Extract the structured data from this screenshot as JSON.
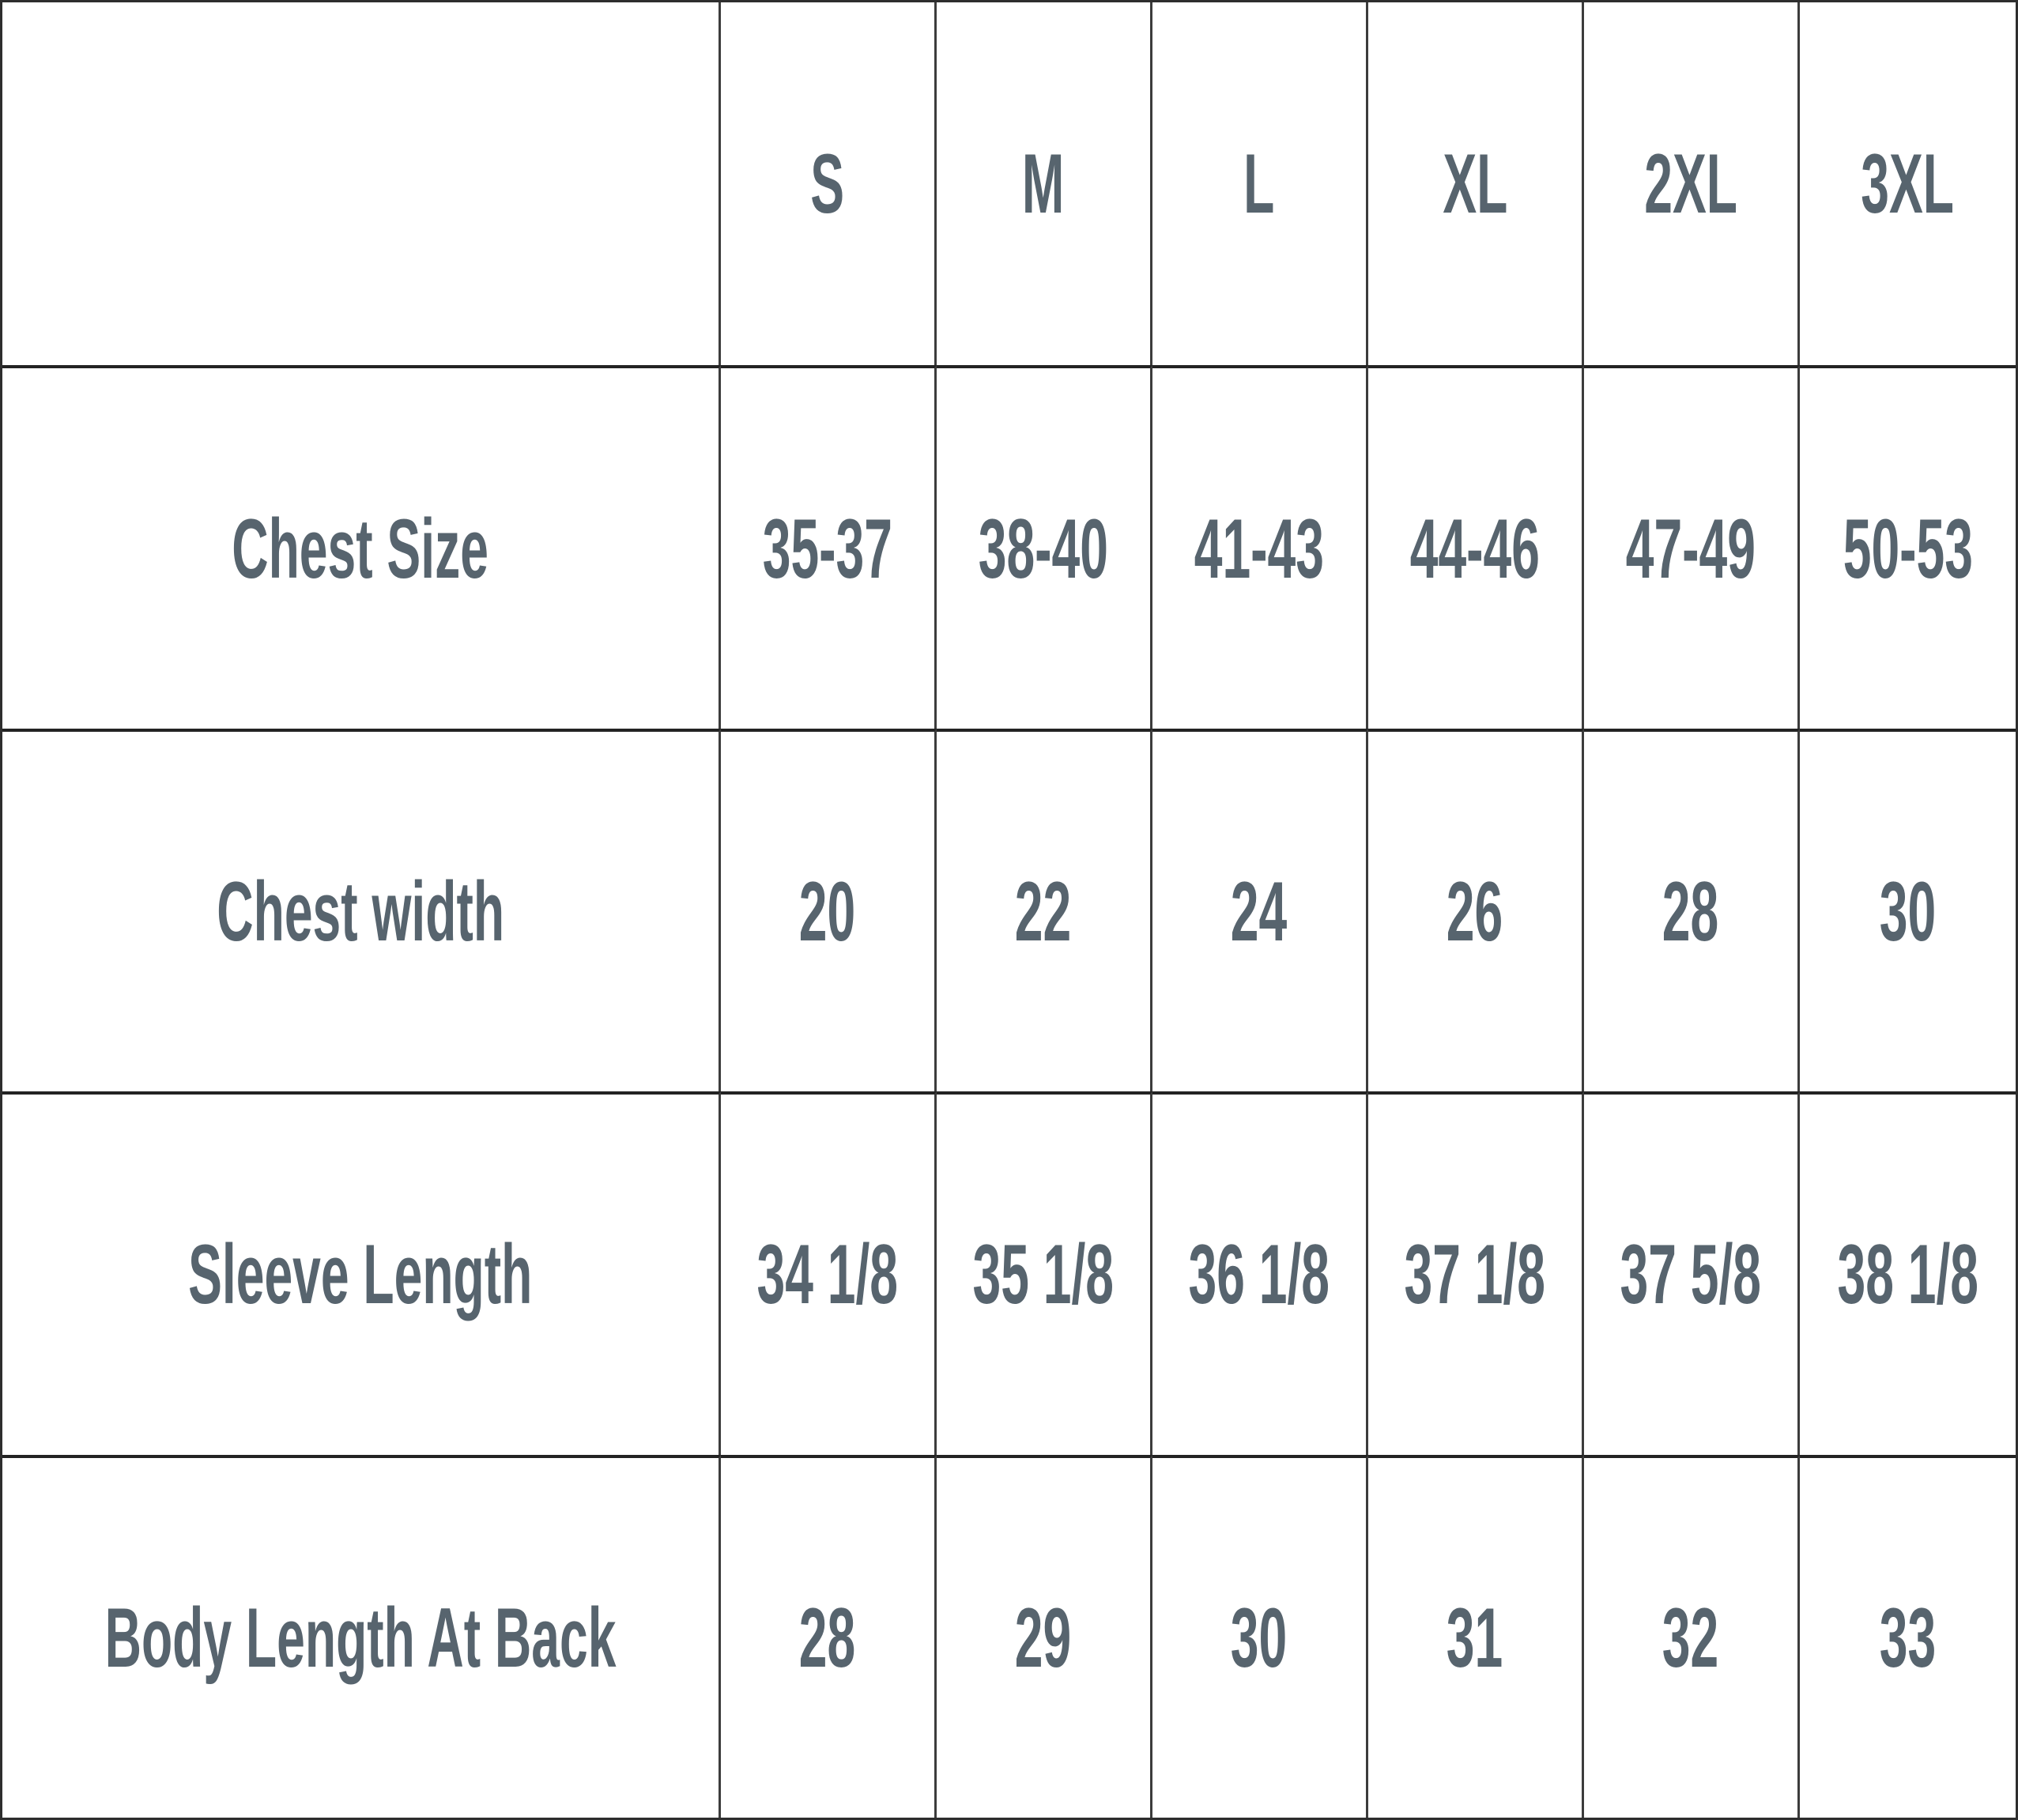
{
  "chart_data": {
    "type": "table",
    "columns": [
      "",
      "S",
      "M",
      "L",
      "XL",
      "2XL",
      "3XL"
    ],
    "rows": [
      {
        "label": "Chest Size",
        "values": [
          "35-37",
          "38-40",
          "41-43",
          "44-46",
          "47-49",
          "50-53"
        ]
      },
      {
        "label": "Chest width",
        "values": [
          "20",
          "22",
          "24",
          "26",
          "28",
          "30"
        ]
      },
      {
        "label": "Sleeve Length",
        "values": [
          "34 1/8",
          "35 1/8",
          "36 1/8",
          "37 1/8",
          "37 5/8",
          "38 1/8"
        ]
      },
      {
        "label": "Body Length At Back",
        "values": [
          "28",
          "29",
          "30",
          "31",
          "32",
          "33"
        ]
      }
    ]
  },
  "colors": {
    "text": "#57646e",
    "border": "#2e2e2e",
    "border_v": "#3c3c3c",
    "border_h": "#232323",
    "background": "#ffffff"
  }
}
